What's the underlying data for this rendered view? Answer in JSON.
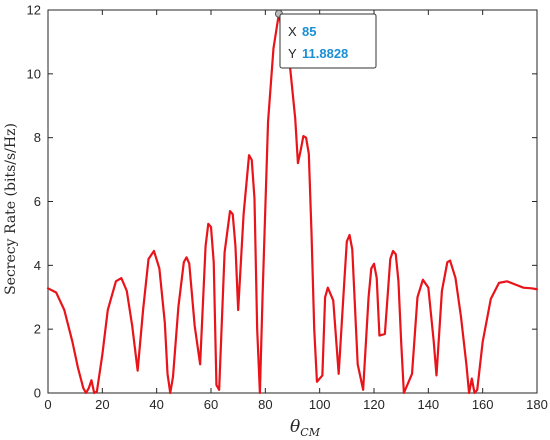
{
  "chart_data": {
    "type": "line",
    "title": "",
    "xlabel_main": "θ",
    "xlabel_sub": "CM",
    "ylabel": "Secrecy Rate (bits/s/Hz)",
    "xlim": [
      0,
      180
    ],
    "ylim": [
      0,
      12
    ],
    "xticks": [
      "0",
      "20",
      "40",
      "60",
      "80",
      "100",
      "120",
      "140",
      "160",
      "180"
    ],
    "yticks": [
      "0",
      "2",
      "4",
      "6",
      "8",
      "10",
      "12"
    ],
    "grid": false,
    "line_color": "#e8141a",
    "series": [
      {
        "x": [
          0,
          3,
          6,
          9,
          11,
          13,
          14,
          15,
          16,
          17,
          18,
          20,
          22,
          25,
          27,
          29,
          31,
          33,
          35,
          37,
          39,
          41,
          43,
          44,
          45,
          46,
          48,
          50,
          51,
          52,
          54,
          56,
          58,
          59,
          60,
          61,
          62,
          63,
          65,
          67,
          68,
          69,
          70,
          72,
          74,
          75,
          76,
          77,
          78,
          79,
          81,
          83,
          85,
          87,
          89,
          91,
          92,
          93,
          94,
          95,
          96,
          97,
          98,
          99,
          101,
          102,
          103,
          105,
          107,
          109,
          110,
          111,
          112,
          114,
          116,
          118,
          119,
          120,
          121,
          122,
          124,
          126,
          127,
          128,
          129,
          130,
          131,
          134,
          136,
          138,
          140,
          142,
          143,
          145,
          147,
          148,
          150,
          152,
          154,
          155,
          156,
          157,
          158,
          160,
          163,
          166,
          169,
          172,
          175,
          178,
          180
        ],
        "y": [
          3.28,
          3.15,
          2.6,
          1.6,
          0.8,
          0.15,
          0.0,
          0.15,
          0.4,
          0.0,
          0.05,
          1.2,
          2.6,
          3.5,
          3.6,
          3.2,
          2.1,
          0.7,
          2.6,
          4.2,
          4.45,
          3.9,
          2.2,
          0.6,
          0.0,
          0.5,
          2.7,
          4.1,
          4.25,
          4.05,
          2.1,
          0.9,
          4.6,
          5.3,
          5.2,
          4.1,
          0.25,
          0.1,
          4.4,
          5.7,
          5.6,
          4.6,
          2.6,
          5.6,
          7.45,
          7.3,
          6.1,
          2.0,
          0.0,
          3.1,
          8.5,
          10.8,
          11.8828,
          11.6,
          10.3,
          8.6,
          7.2,
          7.6,
          8.05,
          8.0,
          7.5,
          5.0,
          2.0,
          0.35,
          0.55,
          3.0,
          3.3,
          2.9,
          0.6,
          3.4,
          4.75,
          4.95,
          4.5,
          0.9,
          0.1,
          3.0,
          3.9,
          4.05,
          3.6,
          1.8,
          1.85,
          4.2,
          4.45,
          4.35,
          3.5,
          1.6,
          0.0,
          0.6,
          3.0,
          3.55,
          3.3,
          1.6,
          0.55,
          3.2,
          4.1,
          4.15,
          3.6,
          2.4,
          0.9,
          0.0,
          0.45,
          0.0,
          0.1,
          1.6,
          2.95,
          3.45,
          3.5,
          3.4,
          3.3,
          3.28,
          3.25
        ]
      }
    ],
    "datatip": {
      "x_label": "X",
      "x_value": "85",
      "y_label": "Y",
      "y_value": "11.8828",
      "x": 85,
      "y": 11.8828
    }
  }
}
